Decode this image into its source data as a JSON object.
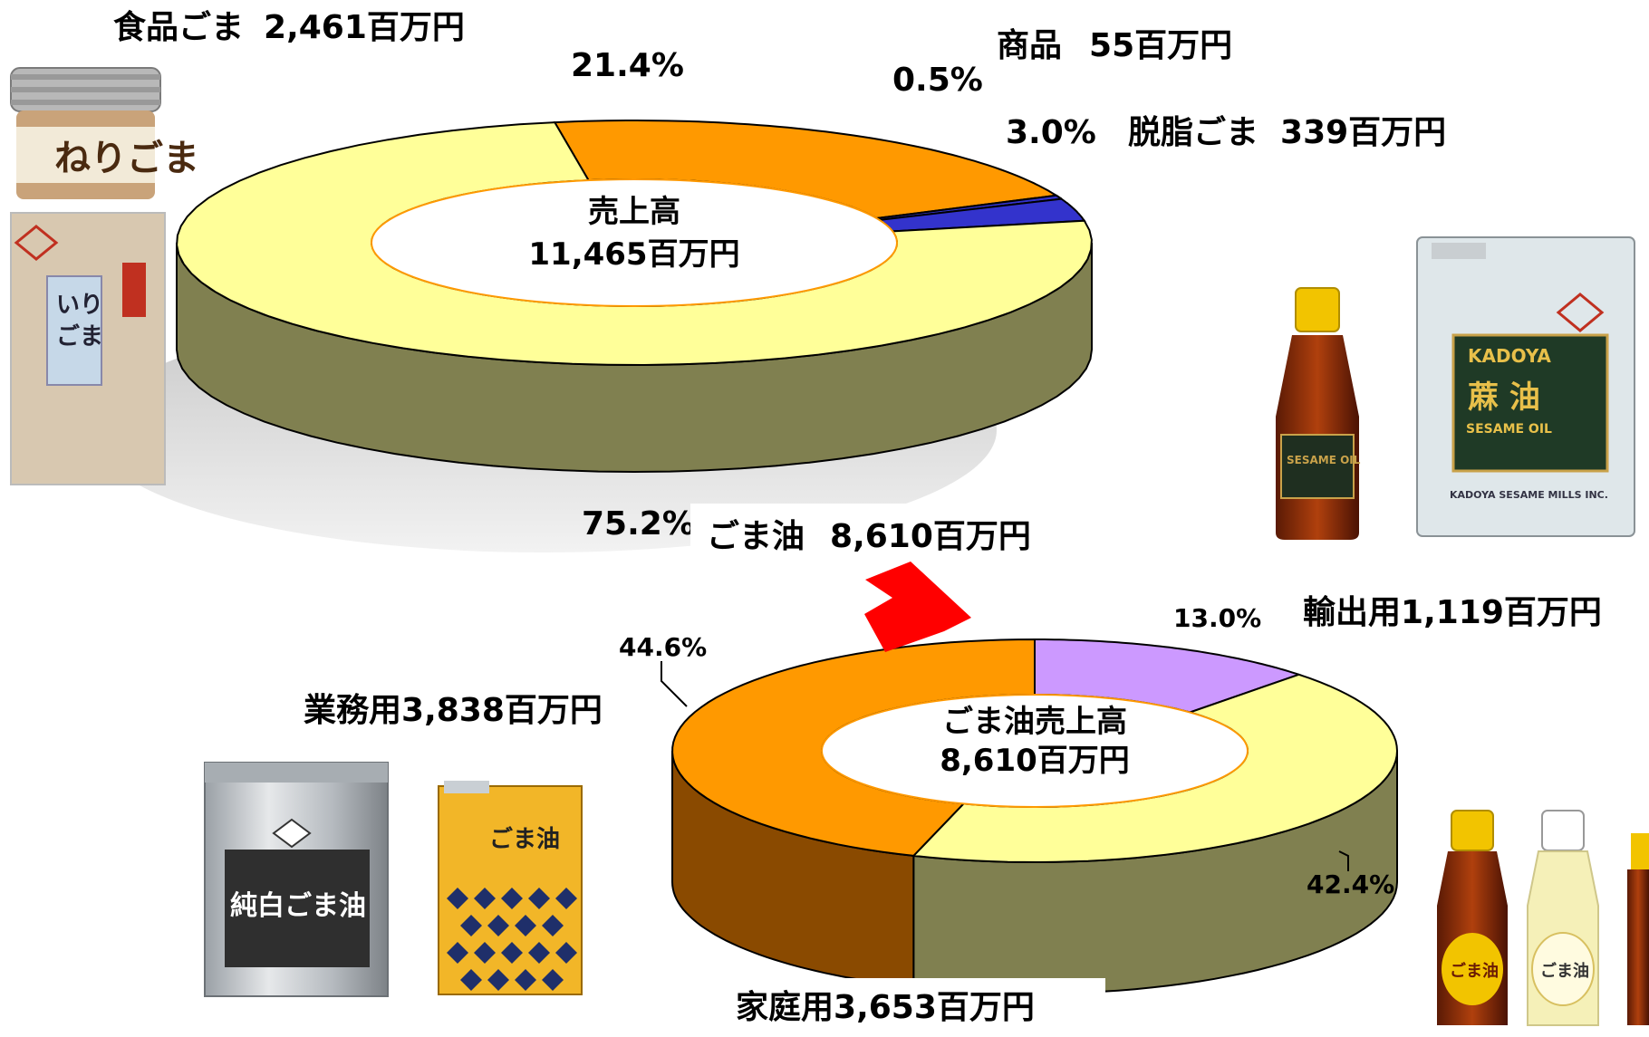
{
  "chart_data": [
    {
      "type": "pie",
      "donut": true,
      "three_d": true,
      "center_label": [
        "売上高",
        "11,465百万円"
      ],
      "slices": [
        {
          "name": "食品ごま",
          "value_label": "2,461百万円",
          "value": 2461,
          "percent": 21.4,
          "percent_label": "21.4%",
          "color": "#FF9900"
        },
        {
          "name": "商品",
          "value_label": "55百万円",
          "value": 55,
          "percent": 0.5,
          "percent_label": "0.5%",
          "color": "#3333CC"
        },
        {
          "name": "脱脂ごま",
          "value_label": "339百万円",
          "value": 339,
          "percent": 3.0,
          "percent_label": "3.0%",
          "color": "#3333CC"
        },
        {
          "name": "ごま油",
          "value_label": "8,610百万円",
          "value": 8610,
          "percent": 75.2,
          "percent_label": "75.2%",
          "color": "#FFFF99"
        }
      ]
    },
    {
      "type": "pie",
      "donut": true,
      "three_d": true,
      "center_label": [
        "ごま油売上高",
        "8,610百万円"
      ],
      "slices": [
        {
          "name": "輸出用",
          "value_label": "1,119百万円",
          "value": 1119,
          "percent": 13.0,
          "percent_label": "13.0%",
          "color": "#CC99FF"
        },
        {
          "name": "家庭用",
          "value_label": "3,653百万円",
          "value": 3653,
          "percent": 42.4,
          "percent_label": "42.4%",
          "color": "#FFFF99"
        },
        {
          "name": "業務用",
          "value_label": "3,838百万円",
          "value": 3838,
          "percent": 44.6,
          "percent_label": "44.6%",
          "color": "#FF9900"
        }
      ]
    }
  ],
  "colors": {
    "orange": "#FF9900",
    "blue": "#3333CC",
    "yellow": "#FFFF99",
    "olive_side": "#808050",
    "dark_orange_side": "#8A4A00",
    "purple": "#CC99FF",
    "arrow": "#FF0000",
    "shadow": "#D9D9D9"
  },
  "images": {
    "top_left": [
      "jar-icon",
      "bag-icon"
    ],
    "top_right": [
      "bottle-icon",
      "tin-icon"
    ],
    "bottom_left": [
      "can-icon",
      "tin-icon"
    ],
    "bottom_right": [
      "bottle-icon"
    ]
  }
}
